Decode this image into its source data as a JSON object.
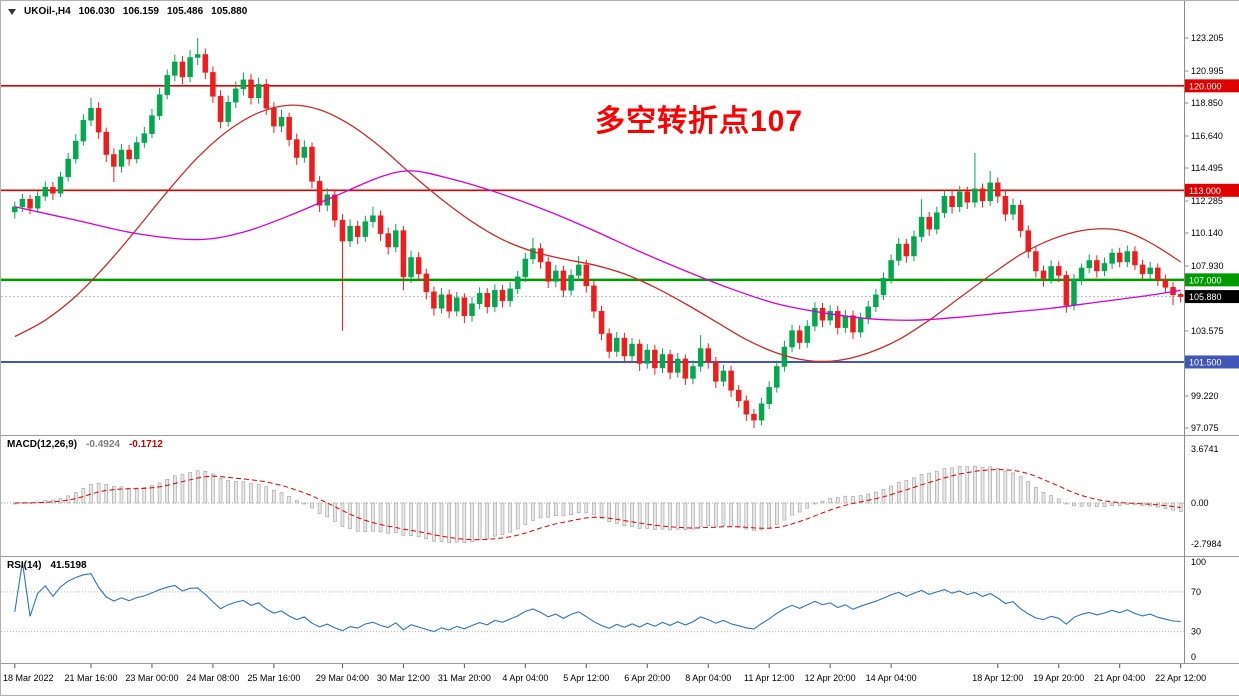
{
  "header": {
    "symbol_period": "UKOil-,H4",
    "open": "106.030",
    "high": "106.159",
    "low": "105.486",
    "close": "105.880"
  },
  "annotation": {
    "text": "多空转折点107",
    "color": "#fd0100"
  },
  "macd_panel": {
    "title": "MACD(12,26,9)",
    "value": "-0.4924",
    "signal_value": "-0.1712"
  },
  "rsi_panel": {
    "title": "RSI(14)",
    "value": "41.5198"
  },
  "chart_data": {
    "type": "candlestick",
    "title": "UKOil- H4 crude oil chart with MACD and RSI",
    "symbol": "UKOil-",
    "timeframe": "H4",
    "price_axis": {
      "min": 97.075,
      "max": 123.205,
      "tick_labels": [
        123.205,
        120.995,
        118.85,
        116.64,
        114.495,
        112.285,
        110.14,
        107.93,
        103.575,
        99.22,
        97.075
      ]
    },
    "h_lines": [
      {
        "value": 120.0,
        "label": "120.000",
        "color": "#e00000",
        "width": 1.6
      },
      {
        "value": 113.0,
        "label": "113.000",
        "color": "#e00000",
        "width": 1.6
      },
      {
        "value": 107.0,
        "label": "107.000",
        "color": "#009b00",
        "width": 2.4
      },
      {
        "value": 101.5,
        "label": "101.500",
        "color": "#4056b8",
        "width": 2.0
      }
    ],
    "current_price": {
      "value": 105.88,
      "label": "105.880",
      "color": "#000000"
    },
    "x_ticks": [
      {
        "i": 0,
        "label": "18 Mar 2022"
      },
      {
        "i": 10,
        "label": "21 Mar 16:00"
      },
      {
        "i": 18,
        "label": "23 Mar 00:00"
      },
      {
        "i": 26,
        "label": "24 Mar 08:00"
      },
      {
        "i": 34,
        "label": "25 Mar 16:00"
      },
      {
        "i": 43,
        "label": "29 Mar 04:00"
      },
      {
        "i": 51,
        "label": "30 Mar 12:00"
      },
      {
        "i": 59,
        "label": "31 Mar 20:00"
      },
      {
        "i": 67,
        "label": "4 Apr 04:00"
      },
      {
        "i": 75,
        "label": "5 Apr 12:00"
      },
      {
        "i": 83,
        "label": "6 Apr 20:00"
      },
      {
        "i": 91,
        "label": "8 Apr 04:00"
      },
      {
        "i": 99,
        "label": "11 Apr 12:00"
      },
      {
        "i": 107,
        "label": "12 Apr 20:00"
      },
      {
        "i": 115,
        "label": "14 Apr 04:00"
      },
      {
        "i": 129,
        "label": "18 Apr 12:00"
      },
      {
        "i": 137,
        "label": "19 Apr 20:00"
      },
      {
        "i": 145,
        "label": "21 Apr 04:00"
      },
      {
        "i": 153,
        "label": "22 Apr 12:00"
      }
    ],
    "ohlc": [
      [
        111.55,
        112.25,
        111.1,
        111.9
      ],
      [
        111.9,
        112.75,
        111.55,
        112.4
      ],
      [
        112.4,
        112.7,
        111.4,
        111.8
      ],
      [
        111.8,
        112.95,
        111.5,
        112.6
      ],
      [
        112.6,
        113.6,
        112.3,
        113.2
      ],
      [
        113.2,
        113.55,
        112.35,
        112.8
      ],
      [
        112.8,
        114.25,
        112.55,
        113.9
      ],
      [
        113.9,
        115.5,
        113.6,
        115.1
      ],
      [
        115.1,
        116.75,
        114.8,
        116.3
      ],
      [
        116.3,
        118.1,
        116.0,
        117.7
      ],
      [
        117.7,
        119.2,
        117.3,
        118.5
      ],
      [
        118.5,
        118.9,
        116.45,
        116.9
      ],
      [
        116.9,
        117.2,
        114.9,
        115.4
      ],
      [
        115.4,
        115.8,
        113.55,
        114.6
      ],
      [
        114.6,
        116.1,
        114.2,
        115.7
      ],
      [
        115.7,
        116.05,
        114.65,
        115.1
      ],
      [
        115.1,
        116.6,
        114.8,
        116.2
      ],
      [
        116.2,
        117.25,
        115.85,
        116.8
      ],
      [
        116.8,
        118.45,
        116.5,
        118.0
      ],
      [
        118.0,
        119.85,
        117.7,
        119.4
      ],
      [
        119.4,
        121.1,
        119.1,
        120.7
      ],
      [
        120.7,
        122.1,
        120.3,
        121.6
      ],
      [
        121.6,
        122.0,
        120.1,
        120.6
      ],
      [
        120.6,
        122.4,
        120.25,
        121.9
      ],
      [
        121.9,
        123.2,
        121.4,
        122.1
      ],
      [
        122.1,
        122.5,
        120.45,
        120.9
      ],
      [
        120.9,
        121.3,
        118.85,
        119.3
      ],
      [
        119.3,
        119.7,
        117.15,
        117.6
      ],
      [
        117.6,
        119.35,
        117.25,
        118.9
      ],
      [
        118.9,
        120.3,
        118.5,
        119.8
      ],
      [
        119.8,
        120.9,
        119.35,
        120.4
      ],
      [
        120.4,
        120.8,
        118.75,
        119.2
      ],
      [
        119.2,
        120.55,
        118.8,
        120.1
      ],
      [
        120.1,
        120.45,
        118.05,
        118.5
      ],
      [
        118.5,
        118.9,
        116.85,
        117.3
      ],
      [
        117.3,
        118.4,
        116.9,
        117.9
      ],
      [
        117.9,
        118.2,
        115.95,
        116.4
      ],
      [
        116.4,
        116.8,
        114.7,
        115.2
      ],
      [
        115.2,
        116.35,
        114.85,
        115.9
      ],
      [
        115.9,
        116.2,
        113.15,
        113.6
      ],
      [
        113.6,
        113.95,
        111.55,
        112.0
      ],
      [
        112.0,
        113.15,
        111.6,
        112.7
      ],
      [
        112.7,
        113.0,
        110.55,
        111.0
      ],
      [
        111.0,
        111.4,
        103.6,
        109.6
      ],
      [
        109.6,
        111.05,
        109.2,
        110.6
      ],
      [
        110.6,
        110.95,
        109.4,
        109.9
      ],
      [
        109.9,
        111.3,
        109.55,
        110.9
      ],
      [
        110.9,
        111.9,
        110.5,
        111.3
      ],
      [
        111.3,
        111.65,
        109.6,
        110.1
      ],
      [
        110.1,
        110.5,
        108.7,
        109.2
      ],
      [
        109.2,
        110.75,
        108.85,
        110.3
      ],
      [
        110.3,
        110.6,
        106.3,
        107.2
      ],
      [
        107.2,
        108.95,
        106.8,
        108.5
      ],
      [
        108.5,
        108.85,
        106.95,
        107.4
      ],
      [
        107.4,
        107.75,
        105.7,
        106.2
      ],
      [
        106.2,
        106.55,
        104.6,
        105.1
      ],
      [
        105.1,
        106.45,
        104.75,
        106.0
      ],
      [
        106.0,
        106.35,
        104.45,
        104.9
      ],
      [
        104.9,
        106.2,
        104.55,
        105.8
      ],
      [
        105.8,
        106.1,
        104.1,
        104.6
      ],
      [
        104.6,
        105.85,
        104.2,
        105.4
      ],
      [
        105.4,
        106.5,
        105.05,
        106.1
      ],
      [
        106.1,
        106.45,
        104.75,
        105.2
      ],
      [
        105.2,
        106.7,
        104.85,
        106.3
      ],
      [
        106.3,
        106.65,
        105.15,
        105.6
      ],
      [
        105.6,
        106.85,
        105.2,
        106.4
      ],
      [
        106.4,
        107.6,
        106.05,
        107.2
      ],
      [
        107.2,
        108.8,
        106.85,
        108.4
      ],
      [
        108.4,
        109.8,
        108.05,
        109.1
      ],
      [
        109.1,
        109.45,
        107.75,
        108.2
      ],
      [
        108.2,
        108.55,
        106.45,
        106.9
      ],
      [
        106.9,
        108.0,
        106.5,
        107.6
      ],
      [
        107.6,
        107.95,
        105.85,
        106.3
      ],
      [
        106.3,
        107.7,
        105.95,
        107.3
      ],
      [
        107.3,
        108.6,
        106.95,
        108.0
      ],
      [
        108.0,
        108.35,
        106.15,
        106.6
      ],
      [
        106.6,
        106.95,
        104.45,
        104.9
      ],
      [
        104.9,
        105.25,
        102.95,
        103.4
      ],
      [
        103.4,
        103.75,
        101.75,
        102.2
      ],
      [
        102.2,
        103.5,
        101.85,
        103.1
      ],
      [
        103.1,
        103.45,
        101.45,
        101.9
      ],
      [
        101.9,
        103.1,
        101.55,
        102.7
      ],
      [
        102.7,
        103.0,
        100.9,
        101.4
      ],
      [
        101.4,
        102.7,
        101.05,
        102.3
      ],
      [
        102.3,
        102.65,
        100.65,
        101.1
      ],
      [
        101.1,
        102.4,
        100.75,
        102.0
      ],
      [
        102.0,
        102.3,
        100.35,
        100.8
      ],
      [
        100.8,
        102.1,
        100.45,
        101.7
      ],
      [
        101.7,
        102.0,
        99.95,
        100.4
      ],
      [
        100.4,
        101.6,
        100.0,
        101.2
      ],
      [
        101.2,
        103.3,
        100.85,
        102.4
      ],
      [
        102.4,
        102.75,
        101.05,
        101.5
      ],
      [
        101.5,
        101.85,
        99.75,
        100.2
      ],
      [
        100.2,
        101.3,
        99.85,
        100.9
      ],
      [
        100.9,
        101.25,
        99.15,
        99.6
      ],
      [
        99.6,
        99.95,
        98.45,
        98.9
      ],
      [
        98.9,
        99.25,
        97.55,
        98.0
      ],
      [
        98.0,
        98.35,
        97.08,
        97.6
      ],
      [
        97.6,
        99.1,
        97.25,
        98.7
      ],
      [
        98.7,
        100.2,
        98.35,
        99.8
      ],
      [
        99.8,
        101.6,
        99.45,
        101.2
      ],
      [
        101.2,
        102.9,
        100.85,
        102.5
      ],
      [
        102.5,
        104.0,
        102.15,
        103.6
      ],
      [
        103.6,
        103.95,
        102.35,
        102.8
      ],
      [
        102.8,
        104.3,
        102.45,
        103.9
      ],
      [
        103.9,
        105.5,
        103.55,
        105.1
      ],
      [
        105.1,
        105.45,
        103.85,
        104.3
      ],
      [
        104.3,
        105.3,
        103.95,
        104.9
      ],
      [
        104.9,
        105.25,
        103.35,
        103.8
      ],
      [
        103.8,
        105.0,
        103.45,
        104.6
      ],
      [
        104.6,
        104.95,
        103.05,
        103.5
      ],
      [
        103.5,
        104.8,
        103.15,
        104.4
      ],
      [
        104.4,
        105.6,
        104.05,
        105.2
      ],
      [
        105.2,
        106.4,
        104.85,
        106.0
      ],
      [
        106.0,
        107.5,
        105.65,
        107.1
      ],
      [
        107.1,
        108.7,
        106.75,
        108.3
      ],
      [
        108.3,
        109.8,
        107.95,
        109.4
      ],
      [
        109.4,
        109.75,
        108.15,
        108.6
      ],
      [
        108.6,
        110.3,
        108.25,
        109.9
      ],
      [
        109.9,
        112.4,
        109.55,
        111.2
      ],
      [
        111.2,
        111.55,
        109.95,
        110.4
      ],
      [
        110.4,
        111.9,
        110.05,
        111.5
      ],
      [
        111.5,
        113.0,
        111.15,
        112.6
      ],
      [
        112.6,
        112.95,
        111.45,
        111.9
      ],
      [
        111.9,
        113.3,
        111.55,
        112.9
      ],
      [
        112.9,
        113.25,
        111.75,
        112.2
      ],
      [
        112.2,
        115.5,
        111.85,
        113.1
      ],
      [
        113.1,
        113.45,
        111.85,
        112.3
      ],
      [
        112.3,
        114.3,
        111.95,
        113.5
      ],
      [
        113.5,
        113.85,
        112.15,
        112.6
      ],
      [
        112.6,
        112.95,
        110.95,
        111.4
      ],
      [
        111.4,
        112.45,
        111.0,
        112.0
      ],
      [
        112.0,
        112.35,
        109.85,
        110.3
      ],
      [
        110.3,
        110.65,
        108.45,
        108.9
      ],
      [
        108.9,
        109.25,
        107.15,
        107.6
      ],
      [
        107.6,
        107.95,
        106.55,
        107.1
      ],
      [
        107.1,
        108.3,
        106.75,
        107.9
      ],
      [
        107.9,
        108.25,
        106.85,
        107.3
      ],
      [
        107.3,
        107.6,
        104.8,
        105.3
      ],
      [
        105.3,
        107.4,
        104.95,
        107.0
      ],
      [
        107.0,
        108.1,
        106.65,
        107.8
      ],
      [
        107.8,
        108.7,
        107.45,
        108.3
      ],
      [
        108.3,
        108.65,
        107.15,
        107.6
      ],
      [
        107.6,
        108.5,
        107.25,
        108.1
      ],
      [
        108.1,
        109.1,
        107.75,
        108.8
      ],
      [
        108.8,
        109.15,
        107.85,
        108.2
      ],
      [
        108.2,
        109.3,
        107.85,
        108.9
      ],
      [
        108.9,
        109.25,
        107.65,
        108.0
      ],
      [
        108.0,
        108.35,
        107.05,
        107.4
      ],
      [
        107.4,
        108.2,
        107.05,
        107.8
      ],
      [
        107.8,
        108.1,
        106.6,
        107.0
      ],
      [
        107.0,
        107.35,
        106.15,
        106.5
      ],
      [
        106.5,
        106.85,
        105.3,
        106.0
      ],
      [
        106.03,
        106.16,
        105.49,
        105.88
      ]
    ],
    "ma_lines": [
      {
        "name": "ma-line-red",
        "color": "#cc2a2a",
        "points": [
          [
            0,
            103.2
          ],
          [
            4,
            104.3
          ],
          [
            8,
            105.9
          ],
          [
            12,
            108.0
          ],
          [
            16,
            110.4
          ],
          [
            20,
            112.9
          ],
          [
            24,
            115.2
          ],
          [
            28,
            117.0
          ],
          [
            32,
            118.2
          ],
          [
            36,
            118.7
          ],
          [
            40,
            118.4
          ],
          [
            44,
            117.4
          ],
          [
            48,
            115.9
          ],
          [
            52,
            114.1
          ],
          [
            56,
            112.4
          ],
          [
            60,
            110.9
          ],
          [
            64,
            109.7
          ],
          [
            68,
            108.9
          ],
          [
            72,
            108.4
          ],
          [
            76,
            108.0
          ],
          [
            80,
            107.4
          ],
          [
            84,
            106.5
          ],
          [
            88,
            105.4
          ],
          [
            92,
            104.2
          ],
          [
            96,
            103.0
          ],
          [
            100,
            102.1
          ],
          [
            104,
            101.6
          ],
          [
            108,
            101.6
          ],
          [
            112,
            102.1
          ],
          [
            116,
            103.0
          ],
          [
            120,
            104.3
          ],
          [
            124,
            105.8
          ],
          [
            128,
            107.3
          ],
          [
            132,
            108.7
          ],
          [
            136,
            109.7
          ],
          [
            140,
            110.3
          ],
          [
            144,
            110.4
          ],
          [
            147,
            110.0
          ],
          [
            150,
            109.2
          ],
          [
            153,
            108.2
          ]
        ]
      },
      {
        "name": "ma-line-magenta",
        "color": "#d400d4",
        "points": [
          [
            0,
            111.9
          ],
          [
            8,
            111.0
          ],
          [
            16,
            110.1
          ],
          [
            24,
            109.7
          ],
          [
            30,
            110.2
          ],
          [
            36,
            111.3
          ],
          [
            42,
            112.6
          ],
          [
            48,
            113.9
          ],
          [
            52,
            114.3
          ],
          [
            57,
            113.8
          ],
          [
            63,
            112.9
          ],
          [
            70,
            111.6
          ],
          [
            76,
            110.3
          ],
          [
            82,
            108.9
          ],
          [
            88,
            107.6
          ],
          [
            94,
            106.4
          ],
          [
            100,
            105.4
          ],
          [
            106,
            104.8
          ],
          [
            112,
            104.4
          ],
          [
            118,
            104.3
          ],
          [
            124,
            104.5
          ],
          [
            130,
            104.8
          ],
          [
            136,
            105.1
          ],
          [
            142,
            105.5
          ],
          [
            148,
            105.9
          ],
          [
            153,
            106.3
          ]
        ]
      }
    ],
    "macd": {
      "fast": 12,
      "slow": 26,
      "signal": 9,
      "axis": {
        "min": -2.7984,
        "max": 3.6741,
        "tick_labels": [
          {
            "v": 3.6741,
            "t": "3.6741"
          },
          {
            "v": 0,
            "t": "0.00"
          },
          {
            "v": -2.7984,
            "t": "-2.7984"
          }
        ]
      }
    },
    "rsi": {
      "period": 14,
      "levels": [
        70,
        30
      ],
      "axis": {
        "min": 0,
        "max": 100,
        "tick_labels": [
          {
            "v": 100,
            "t": "100"
          },
          {
            "v": 70,
            "t": "70"
          },
          {
            "v": 30,
            "t": "30"
          },
          {
            "v": 0,
            "t": "0"
          }
        ]
      }
    },
    "colors": {
      "up": "#00a94f",
      "down": "#f21b1b",
      "macd_hist_fill": "#e8e8e8",
      "macd_hist_stroke": "#9e9e9e",
      "macd_signal": "#e00000",
      "rsi_line": "#2f75b6"
    }
  }
}
